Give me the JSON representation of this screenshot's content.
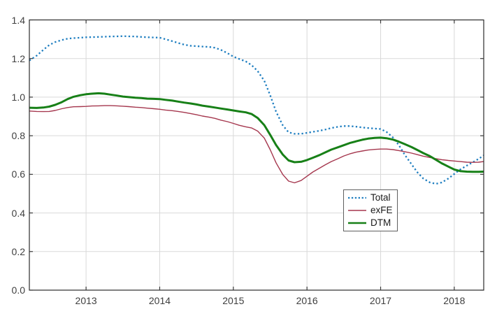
{
  "chart_data": {
    "type": "line",
    "title": "",
    "xlabel": "",
    "ylabel": "",
    "xlim": [
      2012.23,
      2018.4
    ],
    "ylim": [
      0.0,
      1.4
    ],
    "grid": true,
    "legend_position": "inside-lower-middle-right",
    "x_ticks": [
      {
        "value": 2013,
        "label": "2013"
      },
      {
        "value": 2014,
        "label": "2014"
      },
      {
        "value": 2015,
        "label": "2015"
      },
      {
        "value": 2016,
        "label": "2016"
      },
      {
        "value": 2017,
        "label": "2017"
      },
      {
        "value": 2018,
        "label": "2018"
      }
    ],
    "y_ticks": [
      {
        "value": 0.0,
        "label": "0.0"
      },
      {
        "value": 0.2,
        "label": "0.2"
      },
      {
        "value": 0.4,
        "label": "0.4"
      },
      {
        "value": 0.6,
        "label": "0.6"
      },
      {
        "value": 0.8,
        "label": "0.8"
      },
      {
        "value": 1.0,
        "label": "1.0"
      },
      {
        "value": 1.2,
        "label": "1.2"
      },
      {
        "value": 1.4,
        "label": "1.4"
      }
    ],
    "series": [
      {
        "name": "Total",
        "color": "#1e7ec0",
        "style": "dotted",
        "width": 2.3,
        "points": [
          [
            2012.23,
            1.19
          ],
          [
            2012.33,
            1.215
          ],
          [
            2012.42,
            1.245
          ],
          [
            2012.5,
            1.27
          ],
          [
            2012.58,
            1.285
          ],
          [
            2012.67,
            1.296
          ],
          [
            2012.75,
            1.303
          ],
          [
            2012.83,
            1.306
          ],
          [
            2012.92,
            1.308
          ],
          [
            2013.0,
            1.31
          ],
          [
            2013.08,
            1.311
          ],
          [
            2013.17,
            1.312
          ],
          [
            2013.25,
            1.313
          ],
          [
            2013.33,
            1.314
          ],
          [
            2013.42,
            1.315
          ],
          [
            2013.5,
            1.316
          ],
          [
            2013.58,
            1.315
          ],
          [
            2013.67,
            1.314
          ],
          [
            2013.75,
            1.312
          ],
          [
            2013.83,
            1.31
          ],
          [
            2013.92,
            1.309
          ],
          [
            2014.0,
            1.308
          ],
          [
            2014.08,
            1.3
          ],
          [
            2014.17,
            1.29
          ],
          [
            2014.25,
            1.281
          ],
          [
            2014.33,
            1.272
          ],
          [
            2014.42,
            1.266
          ],
          [
            2014.5,
            1.264
          ],
          [
            2014.58,
            1.262
          ],
          [
            2014.67,
            1.26
          ],
          [
            2014.75,
            1.256
          ],
          [
            2014.83,
            1.245
          ],
          [
            2014.92,
            1.228
          ],
          [
            2015.0,
            1.21
          ],
          [
            2015.08,
            1.198
          ],
          [
            2015.17,
            1.185
          ],
          [
            2015.25,
            1.165
          ],
          [
            2015.33,
            1.135
          ],
          [
            2015.42,
            1.085
          ],
          [
            2015.5,
            1.01
          ],
          [
            2015.58,
            0.925
          ],
          [
            2015.67,
            0.855
          ],
          [
            2015.75,
            0.818
          ],
          [
            2015.83,
            0.81
          ],
          [
            2015.92,
            0.81
          ],
          [
            2016.0,
            0.815
          ],
          [
            2016.08,
            0.82
          ],
          [
            2016.17,
            0.826
          ],
          [
            2016.25,
            0.832
          ],
          [
            2016.33,
            0.84
          ],
          [
            2016.42,
            0.846
          ],
          [
            2016.5,
            0.85
          ],
          [
            2016.58,
            0.85
          ],
          [
            2016.67,
            0.847
          ],
          [
            2016.75,
            0.843
          ],
          [
            2016.83,
            0.84
          ],
          [
            2016.92,
            0.837
          ],
          [
            2017.0,
            0.835
          ],
          [
            2017.08,
            0.82
          ],
          [
            2017.17,
            0.79
          ],
          [
            2017.25,
            0.75
          ],
          [
            2017.33,
            0.7
          ],
          [
            2017.42,
            0.652
          ],
          [
            2017.5,
            0.61
          ],
          [
            2017.58,
            0.578
          ],
          [
            2017.67,
            0.558
          ],
          [
            2017.75,
            0.551
          ],
          [
            2017.83,
            0.558
          ],
          [
            2017.92,
            0.578
          ],
          [
            2018.0,
            0.602
          ],
          [
            2018.08,
            0.625
          ],
          [
            2018.17,
            0.645
          ],
          [
            2018.25,
            0.662
          ],
          [
            2018.33,
            0.68
          ],
          [
            2018.4,
            0.698
          ]
        ]
      },
      {
        "name": "exFE",
        "color": "#a5374e",
        "style": "solid",
        "width": 1.4,
        "points": [
          [
            2012.23,
            0.928
          ],
          [
            2012.33,
            0.926
          ],
          [
            2012.42,
            0.925
          ],
          [
            2012.5,
            0.926
          ],
          [
            2012.58,
            0.931
          ],
          [
            2012.67,
            0.94
          ],
          [
            2012.75,
            0.946
          ],
          [
            2012.83,
            0.95
          ],
          [
            2012.92,
            0.951
          ],
          [
            2013.0,
            0.952
          ],
          [
            2013.08,
            0.954
          ],
          [
            2013.17,
            0.955
          ],
          [
            2013.25,
            0.956
          ],
          [
            2013.33,
            0.956
          ],
          [
            2013.42,
            0.955
          ],
          [
            2013.5,
            0.953
          ],
          [
            2013.58,
            0.951
          ],
          [
            2013.67,
            0.948
          ],
          [
            2013.75,
            0.946
          ],
          [
            2013.83,
            0.943
          ],
          [
            2013.92,
            0.94
          ],
          [
            2014.0,
            0.937
          ],
          [
            2014.08,
            0.933
          ],
          [
            2014.17,
            0.93
          ],
          [
            2014.25,
            0.926
          ],
          [
            2014.33,
            0.921
          ],
          [
            2014.42,
            0.915
          ],
          [
            2014.5,
            0.909
          ],
          [
            2014.58,
            0.902
          ],
          [
            2014.67,
            0.896
          ],
          [
            2014.75,
            0.89
          ],
          [
            2014.83,
            0.881
          ],
          [
            2014.92,
            0.873
          ],
          [
            2015.0,
            0.864
          ],
          [
            2015.08,
            0.854
          ],
          [
            2015.17,
            0.846
          ],
          [
            2015.25,
            0.84
          ],
          [
            2015.33,
            0.824
          ],
          [
            2015.42,
            0.788
          ],
          [
            2015.5,
            0.728
          ],
          [
            2015.58,
            0.66
          ],
          [
            2015.67,
            0.6
          ],
          [
            2015.75,
            0.565
          ],
          [
            2015.83,
            0.556
          ],
          [
            2015.92,
            0.568
          ],
          [
            2016.0,
            0.59
          ],
          [
            2016.08,
            0.612
          ],
          [
            2016.17,
            0.632
          ],
          [
            2016.25,
            0.65
          ],
          [
            2016.33,
            0.666
          ],
          [
            2016.42,
            0.681
          ],
          [
            2016.5,
            0.695
          ],
          [
            2016.58,
            0.706
          ],
          [
            2016.67,
            0.715
          ],
          [
            2016.75,
            0.721
          ],
          [
            2016.83,
            0.726
          ],
          [
            2016.92,
            0.729
          ],
          [
            2017.0,
            0.731
          ],
          [
            2017.08,
            0.731
          ],
          [
            2017.17,
            0.728
          ],
          [
            2017.25,
            0.723
          ],
          [
            2017.33,
            0.717
          ],
          [
            2017.42,
            0.71
          ],
          [
            2017.5,
            0.702
          ],
          [
            2017.58,
            0.694
          ],
          [
            2017.67,
            0.687
          ],
          [
            2017.75,
            0.681
          ],
          [
            2017.83,
            0.676
          ],
          [
            2017.92,
            0.672
          ],
          [
            2018.0,
            0.669
          ],
          [
            2018.08,
            0.666
          ],
          [
            2018.17,
            0.663
          ],
          [
            2018.25,
            0.662
          ],
          [
            2018.33,
            0.663
          ],
          [
            2018.4,
            0.666
          ]
        ]
      },
      {
        "name": "DTM",
        "color": "#178017",
        "style": "solid",
        "width": 3.0,
        "points": [
          [
            2012.23,
            0.945
          ],
          [
            2012.33,
            0.944
          ],
          [
            2012.42,
            0.946
          ],
          [
            2012.5,
            0.951
          ],
          [
            2012.58,
            0.96
          ],
          [
            2012.67,
            0.974
          ],
          [
            2012.75,
            0.99
          ],
          [
            2012.83,
            1.002
          ],
          [
            2012.92,
            1.01
          ],
          [
            2013.0,
            1.015
          ],
          [
            2013.08,
            1.018
          ],
          [
            2013.17,
            1.02
          ],
          [
            2013.25,
            1.018
          ],
          [
            2013.33,
            1.013
          ],
          [
            2013.42,
            1.008
          ],
          [
            2013.5,
            1.003
          ],
          [
            2013.58,
            1.0
          ],
          [
            2013.67,
            0.997
          ],
          [
            2013.75,
            0.995
          ],
          [
            2013.83,
            0.992
          ],
          [
            2013.92,
            0.991
          ],
          [
            2014.0,
            0.99
          ],
          [
            2014.08,
            0.986
          ],
          [
            2014.17,
            0.982
          ],
          [
            2014.25,
            0.977
          ],
          [
            2014.33,
            0.972
          ],
          [
            2014.42,
            0.967
          ],
          [
            2014.5,
            0.962
          ],
          [
            2014.58,
            0.956
          ],
          [
            2014.67,
            0.951
          ],
          [
            2014.75,
            0.946
          ],
          [
            2014.83,
            0.941
          ],
          [
            2014.92,
            0.936
          ],
          [
            2015.0,
            0.931
          ],
          [
            2015.08,
            0.926
          ],
          [
            2015.17,
            0.921
          ],
          [
            2015.25,
            0.912
          ],
          [
            2015.33,
            0.892
          ],
          [
            2015.42,
            0.855
          ],
          [
            2015.5,
            0.805
          ],
          [
            2015.58,
            0.752
          ],
          [
            2015.67,
            0.703
          ],
          [
            2015.75,
            0.672
          ],
          [
            2015.83,
            0.663
          ],
          [
            2015.92,
            0.665
          ],
          [
            2016.0,
            0.674
          ],
          [
            2016.08,
            0.686
          ],
          [
            2016.17,
            0.7
          ],
          [
            2016.25,
            0.714
          ],
          [
            2016.33,
            0.728
          ],
          [
            2016.42,
            0.74
          ],
          [
            2016.5,
            0.751
          ],
          [
            2016.58,
            0.762
          ],
          [
            2016.67,
            0.771
          ],
          [
            2016.75,
            0.779
          ],
          [
            2016.83,
            0.785
          ],
          [
            2016.92,
            0.789
          ],
          [
            2017.0,
            0.79
          ],
          [
            2017.08,
            0.787
          ],
          [
            2017.17,
            0.78
          ],
          [
            2017.25,
            0.769
          ],
          [
            2017.33,
            0.756
          ],
          [
            2017.42,
            0.741
          ],
          [
            2017.5,
            0.726
          ],
          [
            2017.58,
            0.71
          ],
          [
            2017.67,
            0.694
          ],
          [
            2017.75,
            0.676
          ],
          [
            2017.83,
            0.657
          ],
          [
            2017.92,
            0.64
          ],
          [
            2018.0,
            0.625
          ],
          [
            2018.08,
            0.617
          ],
          [
            2018.17,
            0.614
          ],
          [
            2018.25,
            0.613
          ],
          [
            2018.33,
            0.613
          ],
          [
            2018.4,
            0.614
          ]
        ]
      }
    ]
  },
  "colors": {
    "background": "#ffffff",
    "grid": "#d9d9d9",
    "axis_box": "#2b2b2b",
    "tick": "#3a3a3a",
    "tick_label": "#3f3f3f",
    "legend_border": "#5f5f5f",
    "legend_text": "#1a1a1a"
  }
}
